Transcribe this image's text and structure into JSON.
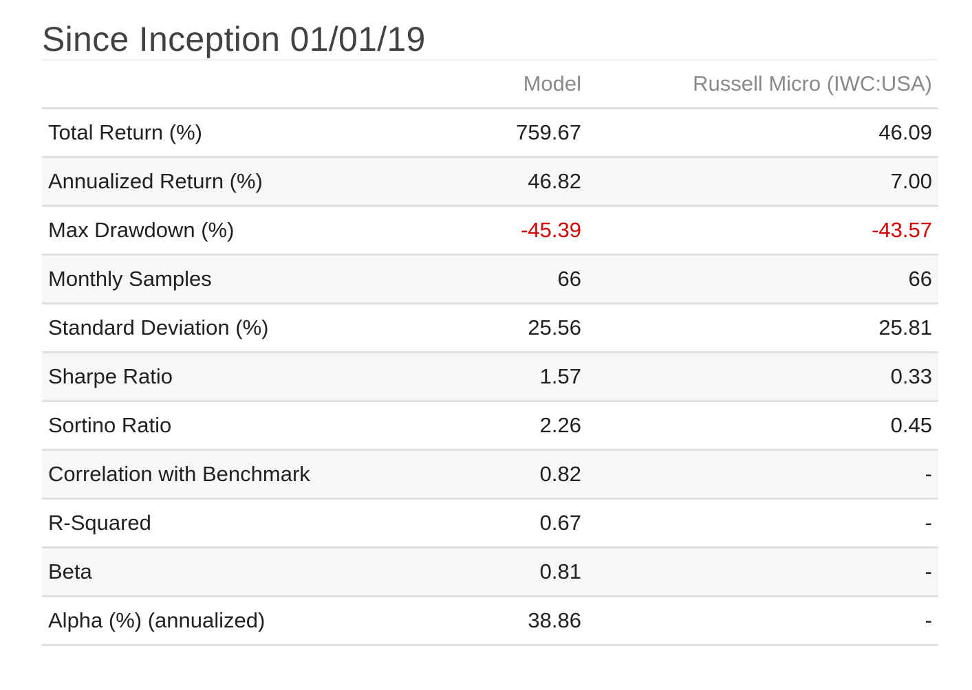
{
  "title": "Since Inception 01/01/19",
  "columns": {
    "label": "",
    "model": "Model",
    "benchmark": "Russell Micro (IWC:USA)"
  },
  "colors": {
    "negative": "#d50000",
    "header_text": "#8a8a8a",
    "stripe": "#f7f7f7"
  },
  "rows": [
    {
      "label": "Total Return (%)",
      "model": "759.67",
      "benchmark": "46.09"
    },
    {
      "label": "Annualized Return (%)",
      "model": "46.82",
      "benchmark": "7.00"
    },
    {
      "label": "Max Drawdown (%)",
      "model": "-45.39",
      "benchmark": "-43.57"
    },
    {
      "label": "Monthly Samples",
      "model": "66",
      "benchmark": "66"
    },
    {
      "label": "Standard Deviation (%)",
      "model": "25.56",
      "benchmark": "25.81"
    },
    {
      "label": "Sharpe Ratio",
      "model": "1.57",
      "benchmark": "0.33"
    },
    {
      "label": "Sortino Ratio",
      "model": "2.26",
      "benchmark": "0.45"
    },
    {
      "label": "Correlation with Benchmark",
      "model": "0.82",
      "benchmark": "-"
    },
    {
      "label": "R-Squared",
      "model": "0.67",
      "benchmark": "-"
    },
    {
      "label": "Beta",
      "model": "0.81",
      "benchmark": "-"
    },
    {
      "label": "Alpha (%) (annualized)",
      "model": "38.86",
      "benchmark": "-"
    }
  ]
}
